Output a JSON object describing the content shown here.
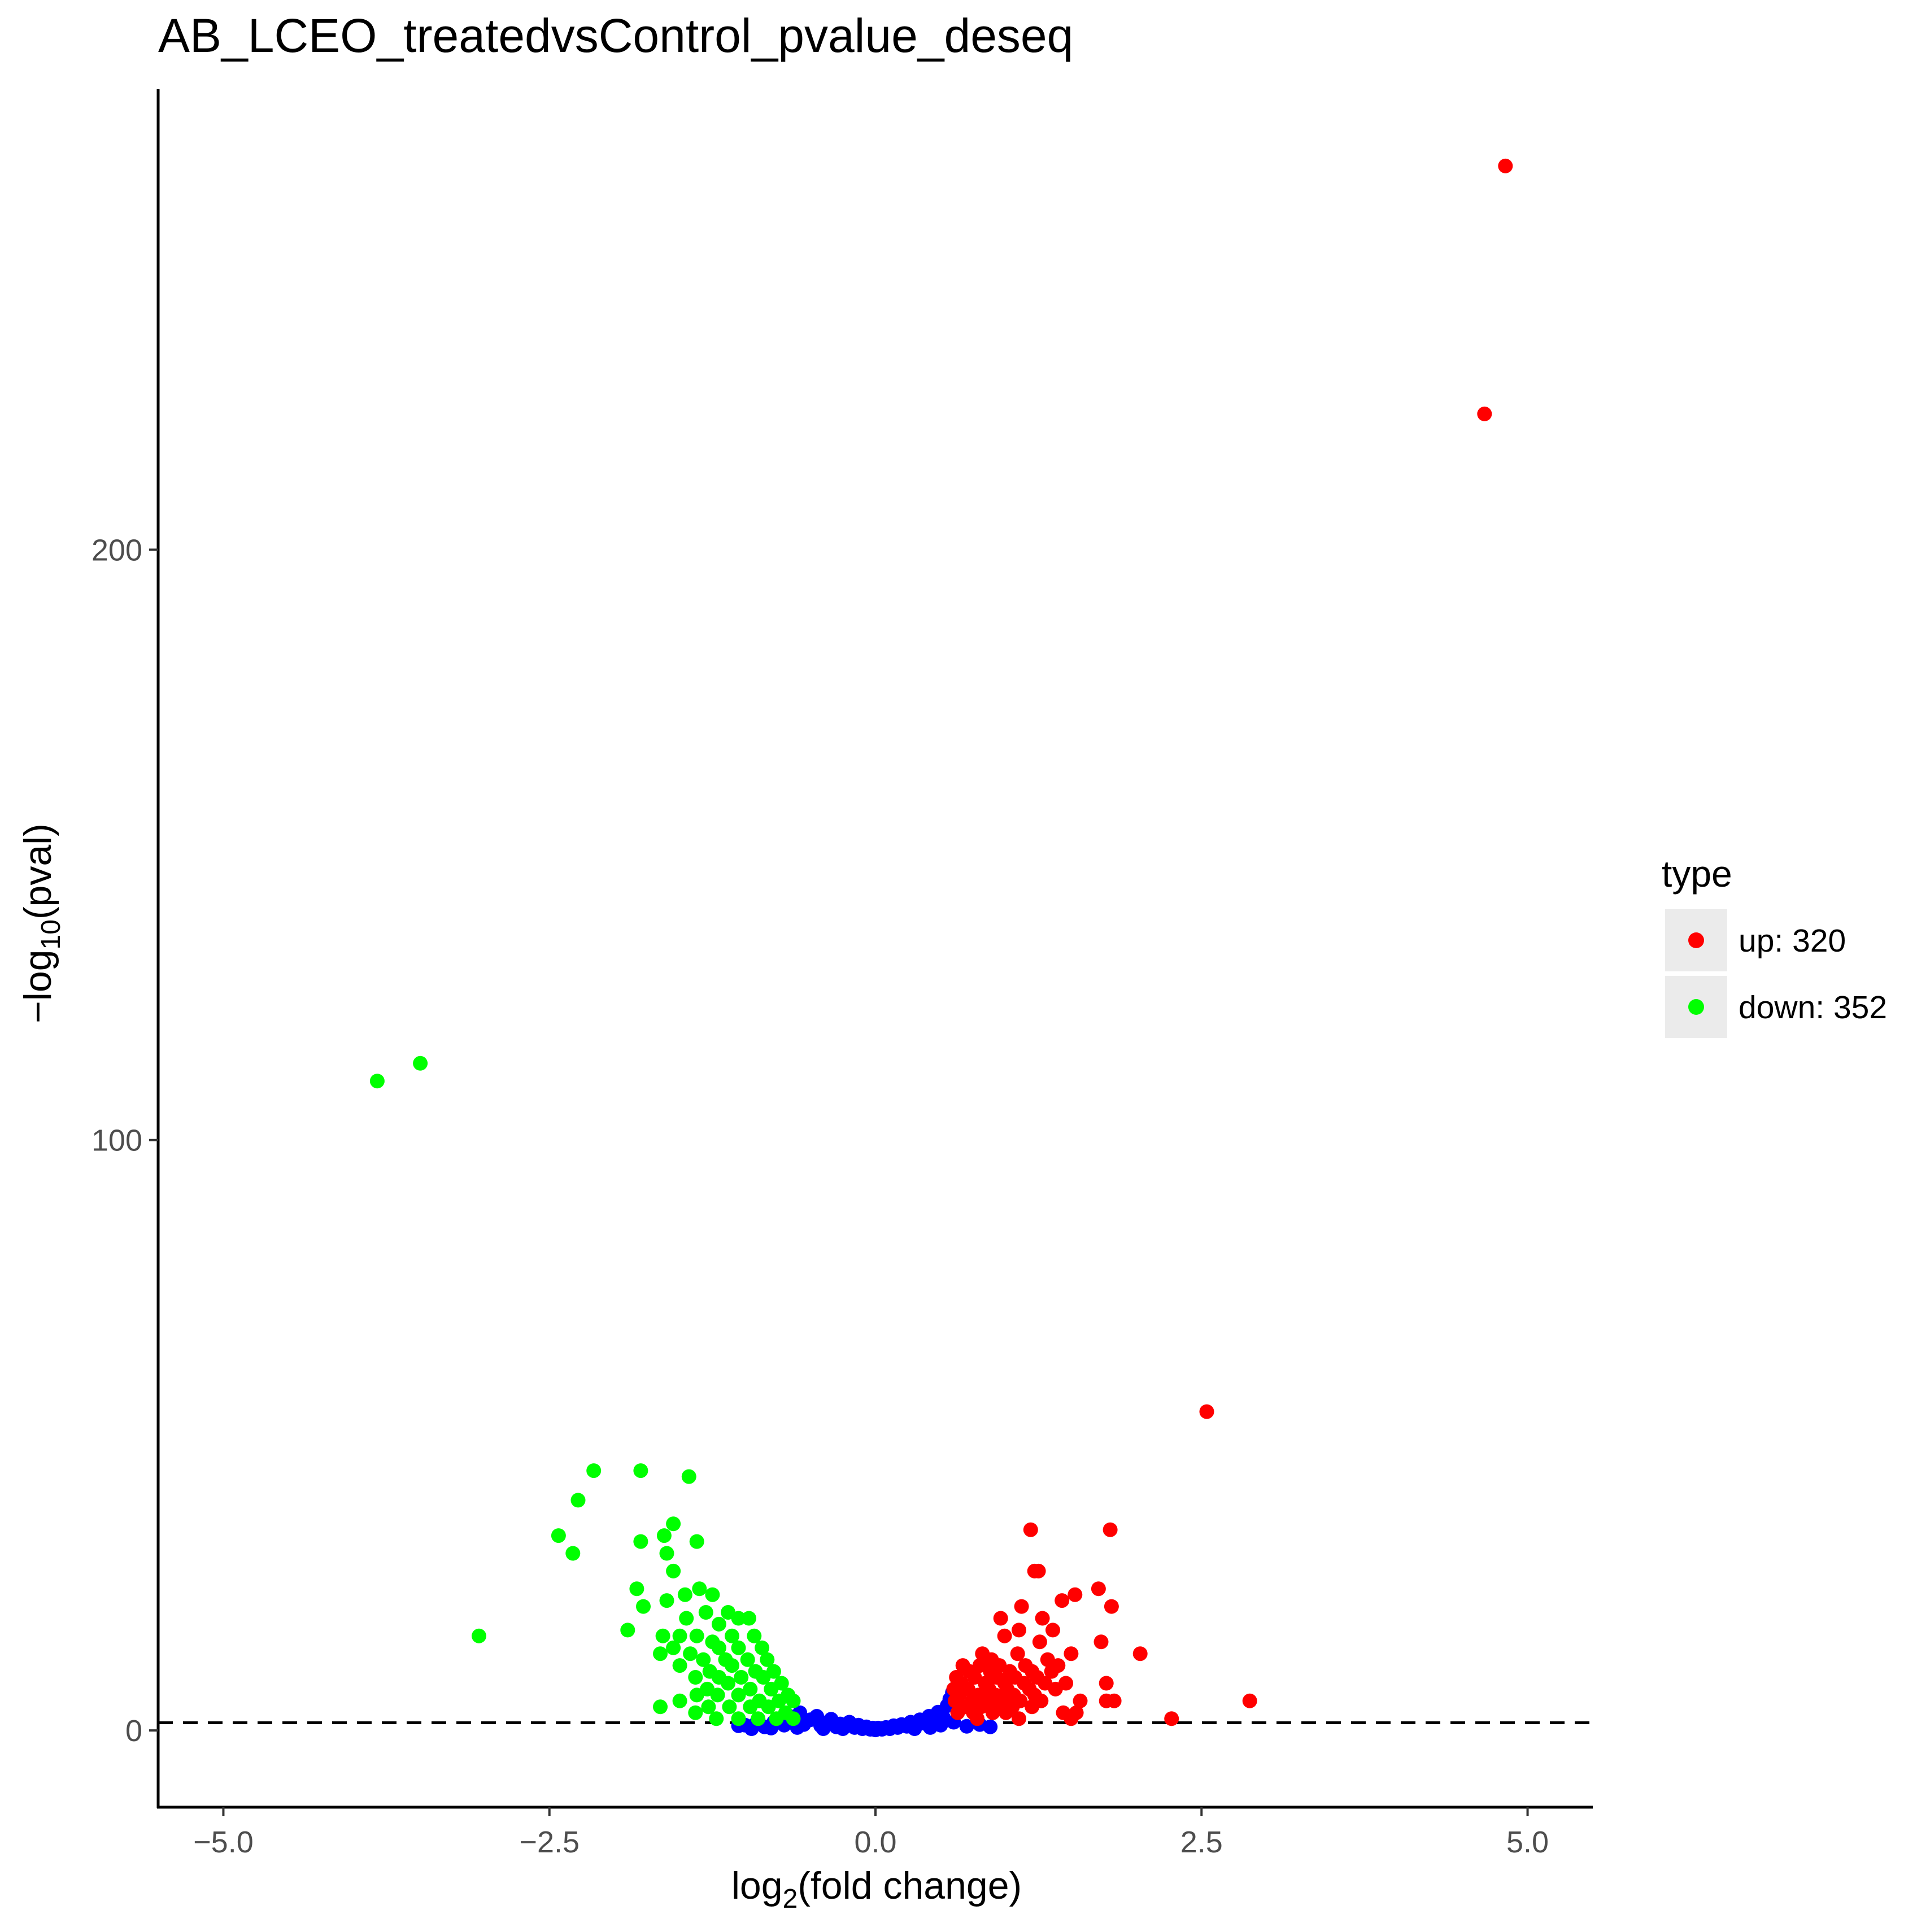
{
  "chart_data": {
    "type": "scatter",
    "title": "AB_LCEO_treatedvsControl_pvalue_deseq",
    "xlabel": {
      "prefix": "log",
      "sub": "2",
      "suffix": "(fold change)"
    },
    "ylabel": {
      "prefix": "−log",
      "sub": "10",
      "suffix": "(pval)"
    },
    "xlim": [
      -5.5,
      5.5
    ],
    "ylim": [
      -13,
      278
    ],
    "x_ticks": [
      {
        "value": -5.0,
        "label": "−5.0"
      },
      {
        "value": -2.5,
        "label": "−2.5"
      },
      {
        "value": 0.0,
        "label": "0.0"
      },
      {
        "value": 2.5,
        "label": "2.5"
      },
      {
        "value": 5.0,
        "label": "5.0"
      }
    ],
    "y_ticks": [
      {
        "value": 0,
        "label": "0"
      },
      {
        "value": 100,
        "label": "100"
      },
      {
        "value": 200,
        "label": "200"
      }
    ],
    "threshold_line": {
      "y": 1.3,
      "style": "dashed"
    },
    "grid": false,
    "legend": {
      "title": "type",
      "position": "right",
      "entries": [
        {
          "label": "up: 320",
          "color": "#ff0000"
        },
        {
          "label": "down: 352",
          "color": "#00ff00"
        }
      ]
    },
    "series": [
      {
        "name": "up: 320",
        "color": "#ff0000",
        "points": [
          [
            4.83,
            265
          ],
          [
            4.67,
            223
          ],
          [
            2.54,
            54
          ],
          [
            2.87,
            5
          ],
          [
            2.27,
            2
          ],
          [
            1.8,
            34
          ],
          [
            1.19,
            34
          ],
          [
            1.22,
            27
          ],
          [
            1.25,
            27
          ],
          [
            1.71,
            24
          ],
          [
            1.53,
            23
          ],
          [
            1.81,
            21
          ],
          [
            1.43,
            22
          ],
          [
            1.12,
            21
          ],
          [
            1.28,
            19
          ],
          [
            0.96,
            19
          ],
          [
            1.36,
            17
          ],
          [
            1.1,
            17
          ],
          [
            0.99,
            16
          ],
          [
            1.26,
            15
          ],
          [
            1.73,
            15
          ],
          [
            2.03,
            13
          ],
          [
            1.5,
            13
          ],
          [
            0.82,
            13
          ],
          [
            1.09,
            13
          ],
          [
            0.89,
            12
          ],
          [
            1.32,
            12
          ],
          [
            0.67,
            11
          ],
          [
            0.8,
            11
          ],
          [
            0.95,
            11
          ],
          [
            1.15,
            11
          ],
          [
            1.4,
            11
          ],
          [
            0.72,
            10
          ],
          [
            0.88,
            10
          ],
          [
            1.03,
            10
          ],
          [
            1.2,
            10
          ],
          [
            1.35,
            10
          ],
          [
            0.62,
            9
          ],
          [
            0.76,
            9
          ],
          [
            0.93,
            9
          ],
          [
            1.07,
            9
          ],
          [
            1.24,
            9
          ],
          [
            1.46,
            8
          ],
          [
            1.77,
            8
          ],
          [
            0.66,
            8
          ],
          [
            0.84,
            8
          ],
          [
            0.99,
            8
          ],
          [
            1.14,
            8
          ],
          [
            1.3,
            8
          ],
          [
            0.6,
            7
          ],
          [
            0.71,
            7
          ],
          [
            0.87,
            7
          ],
          [
            1.01,
            7
          ],
          [
            1.18,
            7
          ],
          [
            1.38,
            7
          ],
          [
            0.64,
            6
          ],
          [
            0.79,
            6
          ],
          [
            0.92,
            6
          ],
          [
            1.06,
            6
          ],
          [
            1.22,
            6
          ],
          [
            1.77,
            5
          ],
          [
            1.83,
            5
          ],
          [
            0.61,
            5
          ],
          [
            0.74,
            5
          ],
          [
            0.86,
            5
          ],
          [
            0.97,
            5
          ],
          [
            1.11,
            5
          ],
          [
            1.27,
            5
          ],
          [
            1.57,
            5
          ],
          [
            0.69,
            4
          ],
          [
            0.81,
            4
          ],
          [
            0.94,
            4
          ],
          [
            1.05,
            4
          ],
          [
            1.2,
            4
          ],
          [
            1.44,
            3
          ],
          [
            1.54,
            3
          ],
          [
            0.63,
            3
          ],
          [
            0.75,
            3
          ],
          [
            0.9,
            3
          ],
          [
            1.0,
            3
          ],
          [
            1.5,
            2
          ],
          [
            1.1,
            2
          ],
          [
            0.78,
            2
          ]
        ]
      },
      {
        "name": "down: 352",
        "color": "#00ff00",
        "points": [
          [
            -3.82,
            110
          ],
          [
            -3.49,
            113
          ],
          [
            -3.04,
            16
          ],
          [
            -2.16,
            44
          ],
          [
            -1.8,
            44
          ],
          [
            -1.43,
            43
          ],
          [
            -2.28,
            39
          ],
          [
            -1.55,
            35
          ],
          [
            -2.43,
            33
          ],
          [
            -2.32,
            30
          ],
          [
            -1.8,
            32
          ],
          [
            -1.62,
            33
          ],
          [
            -1.6,
            30
          ],
          [
            -1.37,
            32
          ],
          [
            -1.83,
            24
          ],
          [
            -1.55,
            27
          ],
          [
            -1.35,
            24
          ],
          [
            -1.25,
            23
          ],
          [
            -1.46,
            23
          ],
          [
            -1.9,
            17
          ],
          [
            -1.6,
            22
          ],
          [
            -1.78,
            21
          ],
          [
            -1.45,
            19
          ],
          [
            -1.3,
            20
          ],
          [
            -1.05,
            19
          ],
          [
            -1.13,
            20
          ],
          [
            -0.97,
            19
          ],
          [
            -1.2,
            18
          ],
          [
            -1.63,
            16
          ],
          [
            -1.5,
            16
          ],
          [
            -1.37,
            16
          ],
          [
            -1.1,
            16
          ],
          [
            -0.93,
            16
          ],
          [
            -1.25,
            15
          ],
          [
            -1.55,
            14
          ],
          [
            -1.65,
            13
          ],
          [
            -1.42,
            13
          ],
          [
            -1.2,
            14
          ],
          [
            -1.05,
            14
          ],
          [
            -0.87,
            14
          ],
          [
            -1.32,
            12
          ],
          [
            -1.15,
            12
          ],
          [
            -0.98,
            12
          ],
          [
            -0.83,
            12
          ],
          [
            -1.5,
            11
          ],
          [
            -1.27,
            10
          ],
          [
            -1.1,
            11
          ],
          [
            -0.92,
            10
          ],
          [
            -0.78,
            10
          ],
          [
            -1.38,
            9
          ],
          [
            -1.2,
            9
          ],
          [
            -1.03,
            9
          ],
          [
            -0.86,
            9
          ],
          [
            -0.72,
            8
          ],
          [
            -1.29,
            7
          ],
          [
            -1.13,
            8
          ],
          [
            -0.96,
            7
          ],
          [
            -0.8,
            7
          ],
          [
            -0.67,
            6
          ],
          [
            -1.5,
            5
          ],
          [
            -1.37,
            6
          ],
          [
            -1.21,
            6
          ],
          [
            -1.05,
            6
          ],
          [
            -0.89,
            5
          ],
          [
            -0.74,
            5
          ],
          [
            -0.63,
            5
          ],
          [
            -1.65,
            4
          ],
          [
            -1.28,
            4
          ],
          [
            -1.12,
            4
          ],
          [
            -0.96,
            4
          ],
          [
            -0.82,
            4
          ],
          [
            -0.69,
            3
          ],
          [
            -1.22,
            2
          ],
          [
            -1.05,
            2
          ],
          [
            -0.9,
            2
          ],
          [
            -0.76,
            2
          ],
          [
            -0.63,
            2
          ],
          [
            -1.38,
            3
          ]
        ]
      },
      {
        "name": "",
        "color": "#0000ff",
        "points": [
          [
            -1.05,
            0.8
          ],
          [
            -1.0,
            0.9
          ],
          [
            -0.92,
            1.1
          ],
          [
            -0.85,
            0.6
          ],
          [
            -0.78,
            1.4
          ],
          [
            -0.7,
            0.9
          ],
          [
            -0.63,
            2.3
          ],
          [
            -0.58,
            3.0
          ],
          [
            -0.55,
            1.0
          ],
          [
            -0.5,
            1.8
          ],
          [
            -0.45,
            2.4
          ],
          [
            -0.42,
            0.8
          ],
          [
            -0.38,
            1.3
          ],
          [
            -0.34,
            1.9
          ],
          [
            -0.3,
            0.6
          ],
          [
            -0.27,
            1.1
          ],
          [
            -0.23,
            0.8
          ],
          [
            -0.2,
            1.4
          ],
          [
            -0.16,
            0.5
          ],
          [
            -0.13,
            0.9
          ],
          [
            -0.1,
            0.3
          ],
          [
            -0.07,
            0.6
          ],
          [
            -0.04,
            0.2
          ],
          [
            -0.02,
            0.4
          ],
          [
            0.0,
            0.1
          ],
          [
            0.02,
            0.4
          ],
          [
            0.05,
            0.2
          ],
          [
            0.08,
            0.5
          ],
          [
            0.11,
            0.3
          ],
          [
            0.14,
            0.8
          ],
          [
            0.17,
            0.5
          ],
          [
            0.2,
            1.0
          ],
          [
            0.24,
            0.7
          ],
          [
            0.27,
            1.4
          ],
          [
            0.31,
            1.0
          ],
          [
            0.34,
            1.8
          ],
          [
            0.38,
            1.2
          ],
          [
            0.41,
            2.4
          ],
          [
            0.45,
            1.6
          ],
          [
            0.48,
            3.1
          ],
          [
            0.52,
            2.2
          ],
          [
            0.55,
            4.2
          ],
          [
            0.57,
            5.3
          ],
          [
            0.59,
            6.4
          ],
          [
            0.5,
            0.9
          ],
          [
            0.6,
            1.4
          ],
          [
            0.7,
            0.7
          ],
          [
            0.8,
            1.0
          ],
          [
            0.88,
            0.6
          ],
          [
            -0.6,
            0.5
          ],
          [
            -0.4,
            0.3
          ],
          [
            -0.25,
            0.3
          ],
          [
            0.3,
            0.3
          ],
          [
            0.42,
            0.5
          ],
          [
            -0.8,
            0.4
          ],
          [
            -0.95,
            0.3
          ]
        ]
      }
    ]
  }
}
